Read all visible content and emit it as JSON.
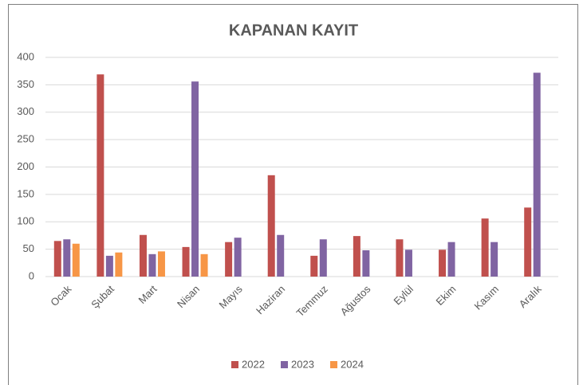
{
  "chart_data": {
    "type": "bar",
    "title": "KAPANAN KAYIT",
    "categories": [
      "Ocak",
      "Şubat",
      "Mart",
      "Nisan",
      "Mayıs",
      "Haziran",
      "Temmuz",
      "Ağustos",
      "Eylül",
      "Ekim",
      "Kasım",
      "Aralık"
    ],
    "series": [
      {
        "name": "2022",
        "color": "#c0504d",
        "values": [
          65,
          369,
          76,
          54,
          63,
          185,
          38,
          74,
          68,
          49,
          106,
          126
        ]
      },
      {
        "name": "2023",
        "color": "#8064a2",
        "values": [
          68,
          38,
          41,
          356,
          71,
          76,
          68,
          48,
          49,
          63,
          63,
          372
        ]
      },
      {
        "name": "2024",
        "color": "#f79646",
        "values": [
          60,
          44,
          46,
          41,
          null,
          null,
          null,
          null,
          null,
          null,
          null,
          null
        ]
      }
    ],
    "ylim": [
      0,
      400
    ],
    "yticks": [
      0,
      50,
      100,
      150,
      200,
      250,
      300,
      350,
      400
    ],
    "grid": true,
    "legend": "bottom"
  }
}
